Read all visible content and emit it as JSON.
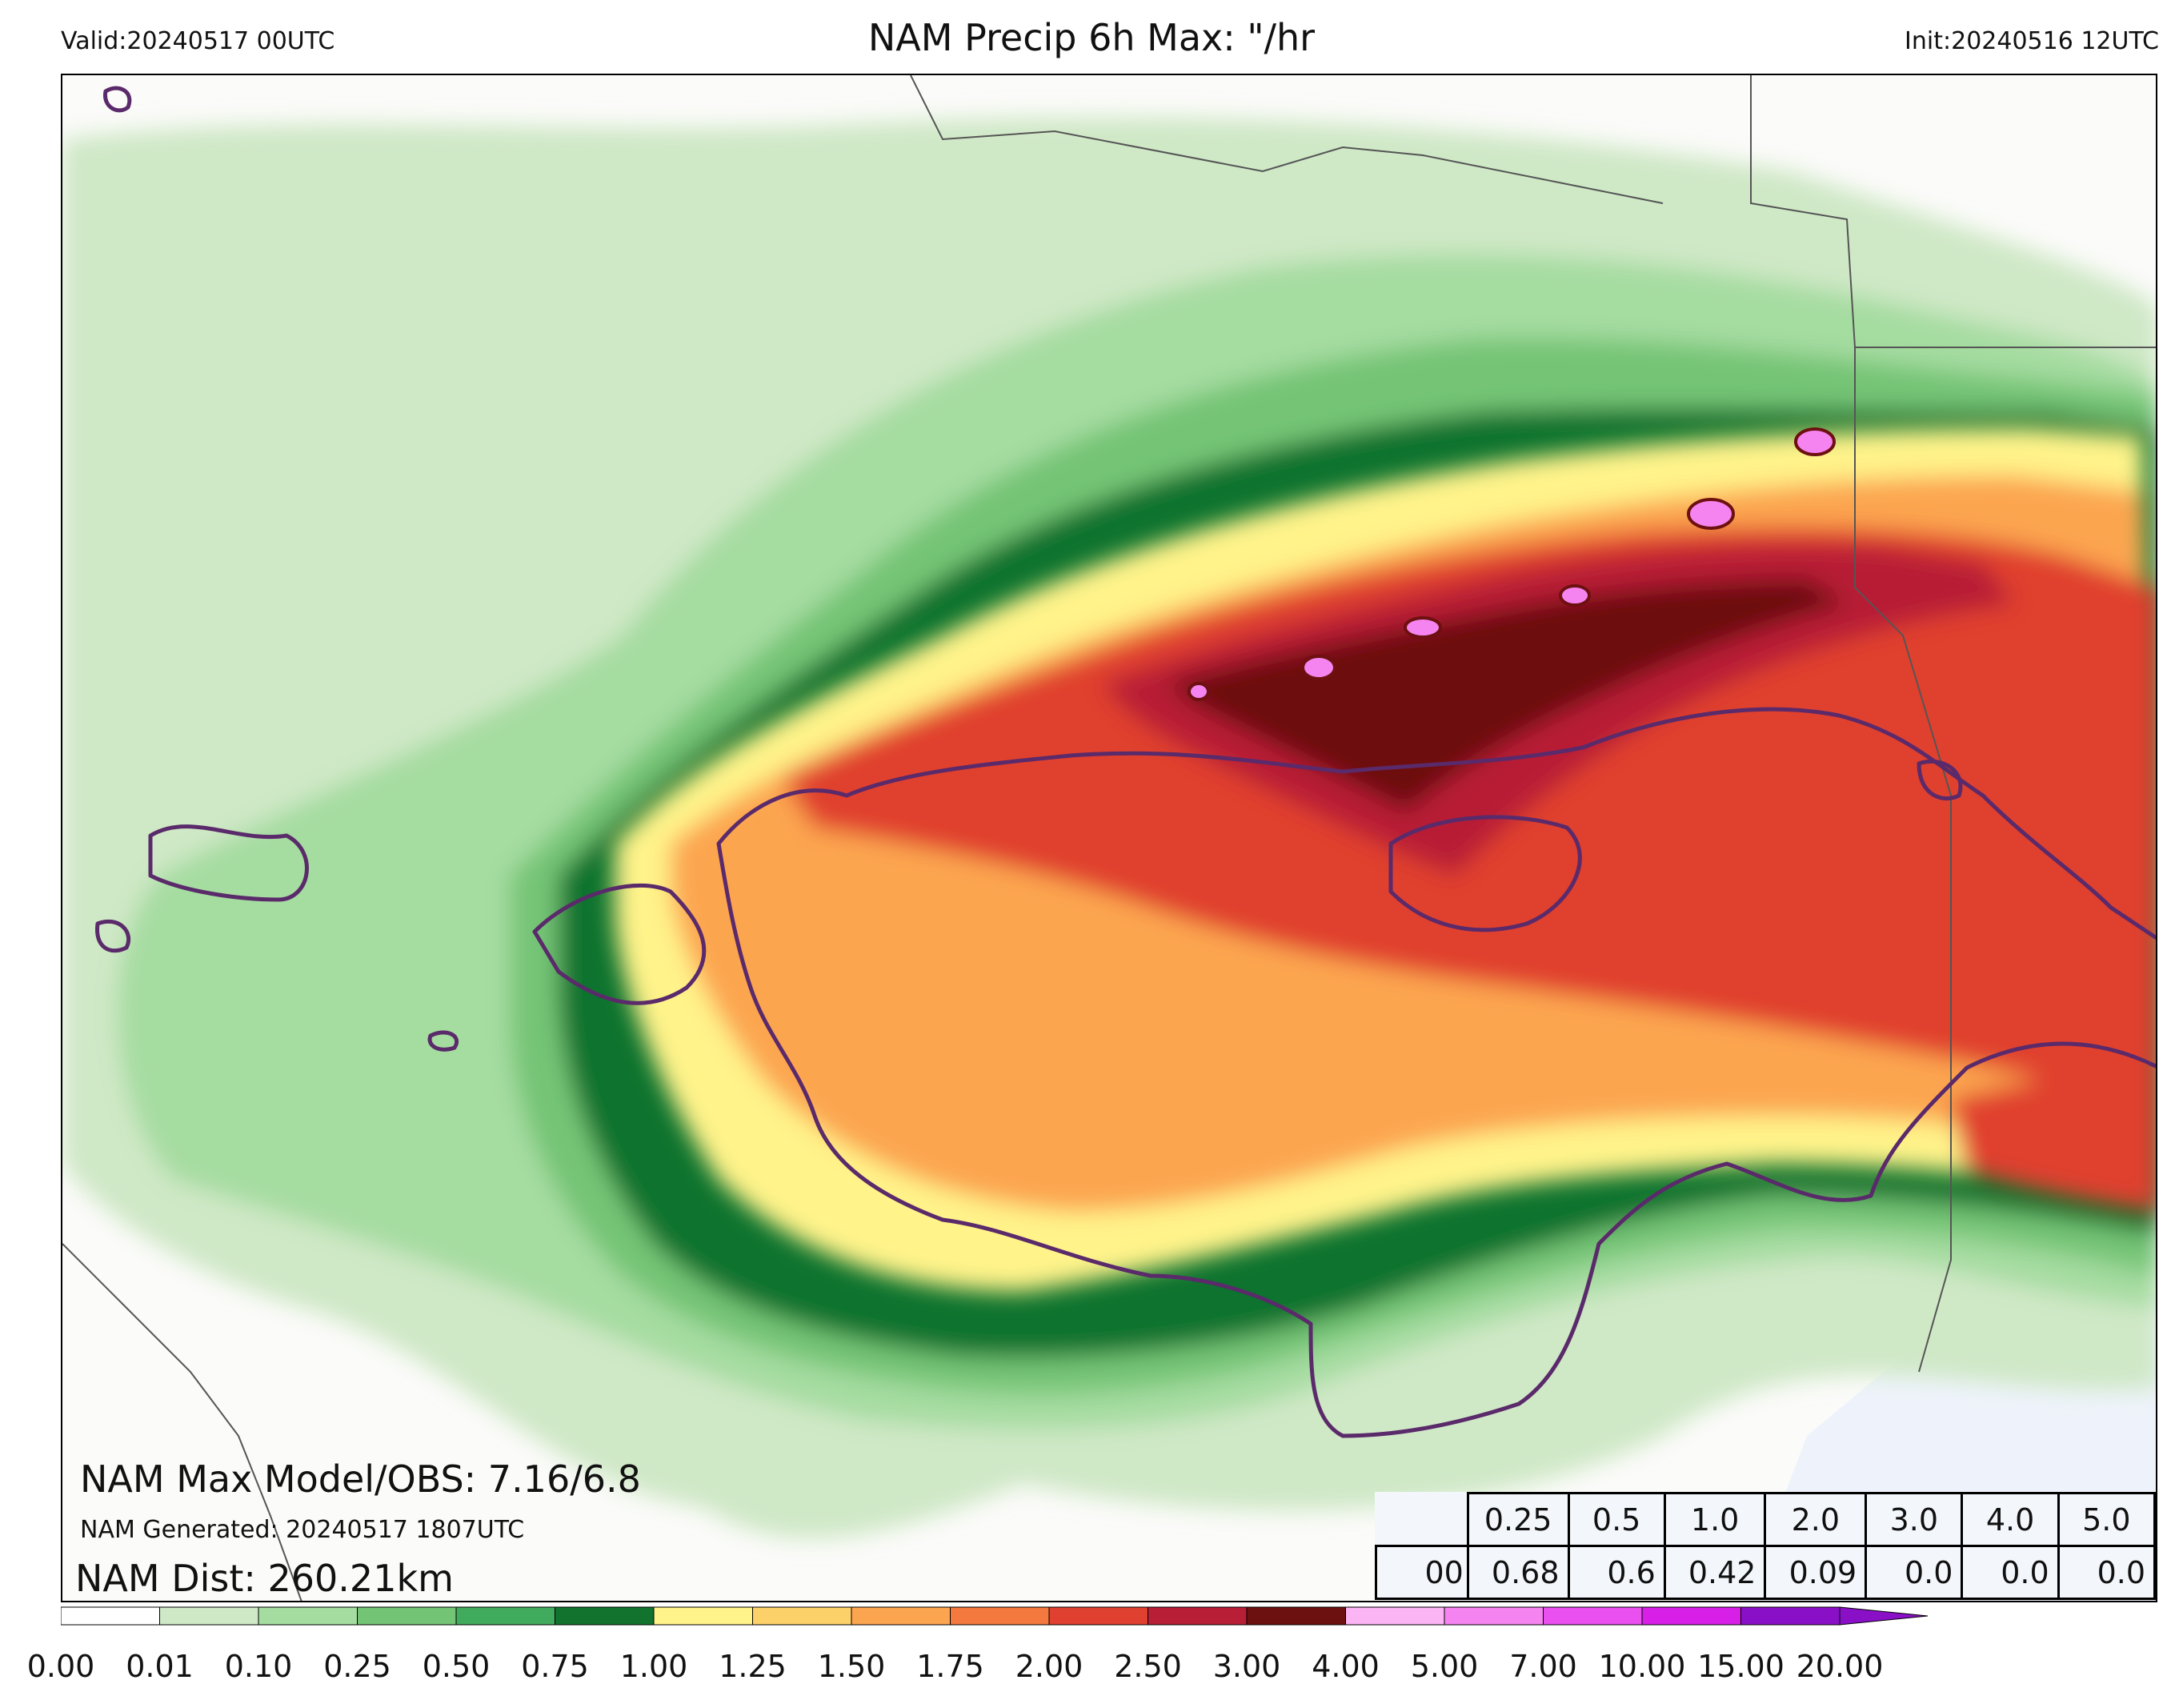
{
  "header": {
    "valid": "Valid:20240517 00UTC",
    "title": "NAM Precip 6h Max: \"/hr",
    "init": "Init:20240516 12UTC"
  },
  "annotations": {
    "max_model_obs": "NAM Max Model/OBS: 7.16/6.8",
    "generated": "NAM Generated: 20240517 1807UTC",
    "distance": "NAM Dist: 260.21km"
  },
  "stats_table": {
    "thresholds": [
      "0.25",
      "0.5",
      "1.0",
      "2.0",
      "3.0",
      "4.0",
      "5.0"
    ],
    "row_label": "00",
    "values": [
      "0.68",
      "0.6",
      "0.42",
      "0.09",
      "0.0",
      "0.0",
      "0.0"
    ]
  },
  "colorbar": {
    "ticks": [
      "0.00",
      "0.01",
      "0.10",
      "0.25",
      "0.50",
      "0.75",
      "1.00",
      "1.25",
      "1.50",
      "1.75",
      "2.00",
      "2.50",
      "3.00",
      "4.00",
      "5.00",
      "7.00",
      "10.00",
      "15.00",
      "20.00"
    ],
    "colors": [
      "#ffffff",
      "#cfe8c6",
      "#a5dca0",
      "#74c476",
      "#41ab5d",
      "#11732e",
      "#fff38a",
      "#fdd16a",
      "#fca550",
      "#f4793e",
      "#e0402f",
      "#b81e36",
      "#6d1010",
      "#fbb4f4",
      "#f584f0",
      "#ea4ff0",
      "#d81fe8",
      "#8a10c8"
    ],
    "extend_color": "#8a10c8"
  },
  "map_colors": {
    "obs_contour": "#5a2a6a",
    "boundary": "#555555",
    "water": "#eef3fb"
  }
}
